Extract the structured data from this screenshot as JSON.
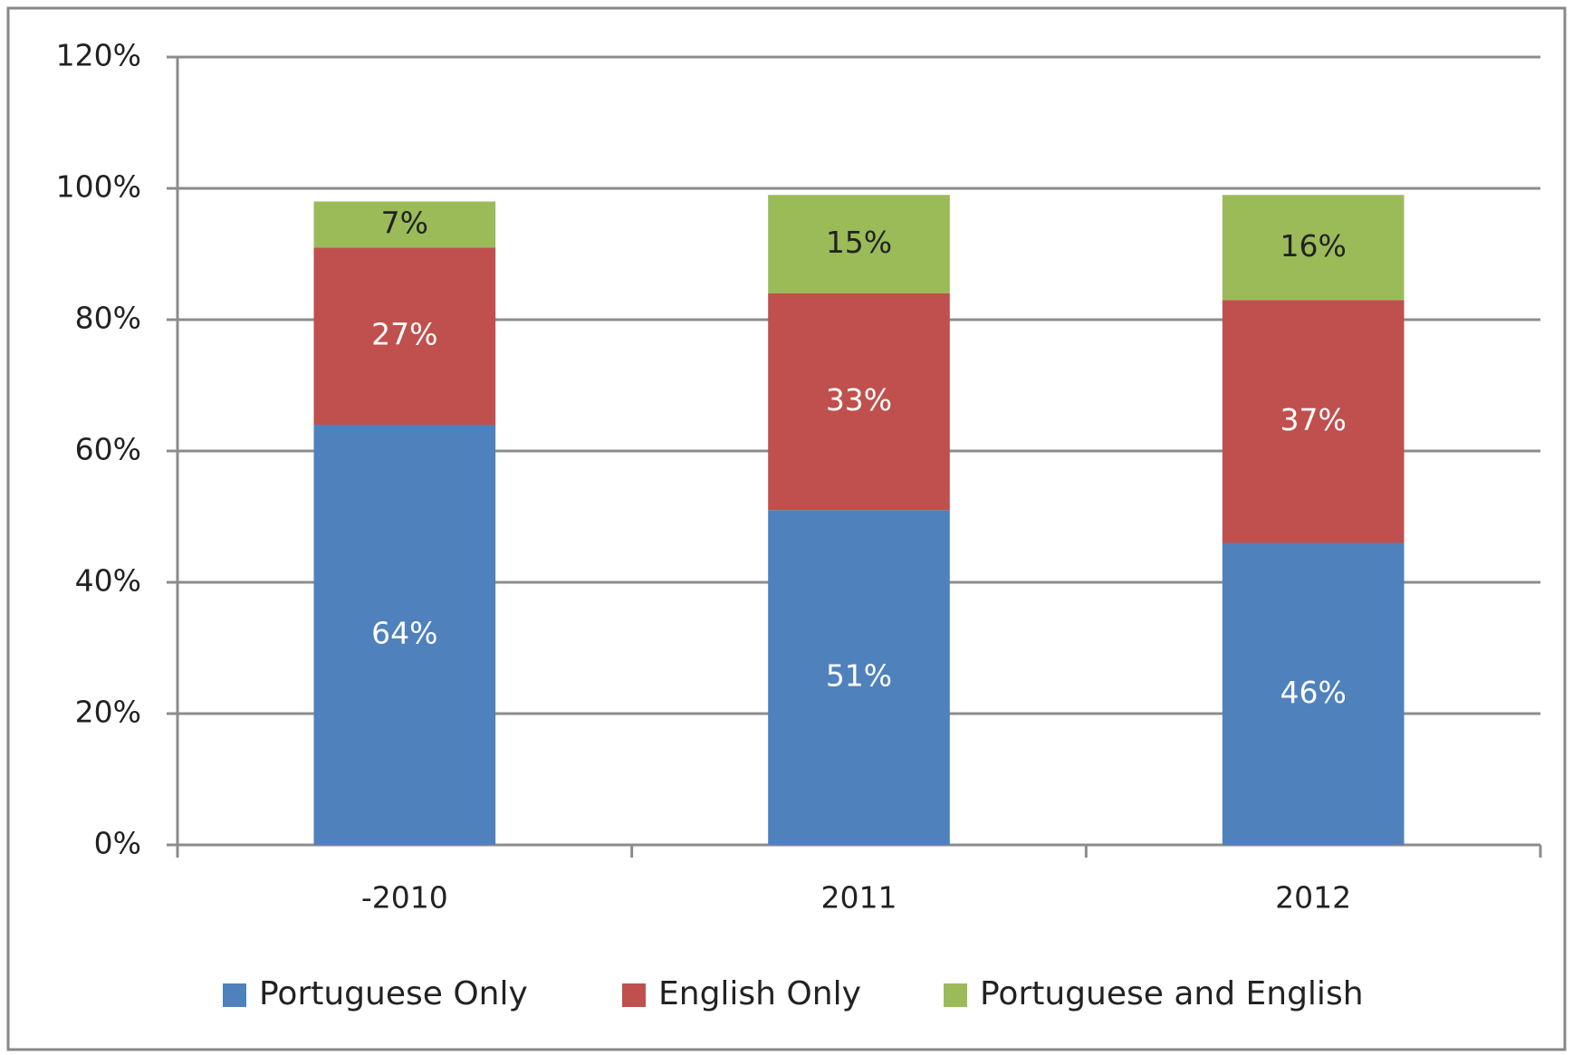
{
  "chart_data": {
    "type": "stacked_bar",
    "categories": [
      "-2010",
      "2011",
      "2012"
    ],
    "series": [
      {
        "name": "Portuguese Only",
        "color": "#4f81bd",
        "label_color": "#ffffff",
        "values": [
          64,
          51,
          46
        ],
        "value_labels": [
          "64%",
          "51%",
          "46%"
        ]
      },
      {
        "name": "English Only",
        "color": "#c0504d",
        "label_color": "#ffffff",
        "values": [
          27,
          33,
          37
        ],
        "value_labels": [
          "27%",
          "33%",
          "37%"
        ]
      },
      {
        "name": "Portuguese and English",
        "color": "#9bbb59",
        "label_color": "#222222",
        "values": [
          7,
          15,
          16
        ],
        "value_labels": [
          "7%",
          "15%",
          "16%"
        ]
      }
    ],
    "ylim": [
      0,
      120
    ],
    "yticks": [
      {
        "value": 0,
        "label": "0%"
      },
      {
        "value": 20,
        "label": "20%"
      },
      {
        "value": 40,
        "label": "40%"
      },
      {
        "value": 60,
        "label": "60%"
      },
      {
        "value": 80,
        "label": "80%"
      },
      {
        "value": 100,
        "label": "100%"
      },
      {
        "value": 120,
        "label": "120%"
      }
    ],
    "grid": true,
    "legend": "bottom"
  }
}
